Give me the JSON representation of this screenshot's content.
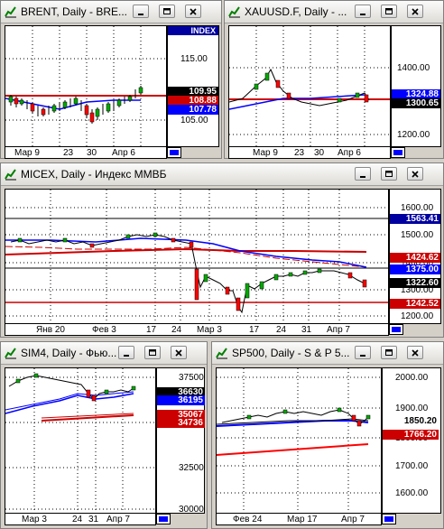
{
  "colors": {
    "up": "#00aa00",
    "down": "#ff0000",
    "ma_blue": "#0000ff",
    "ma_red": "#cc0000",
    "index_bg": "#0000a0"
  },
  "windows": {
    "brent": {
      "title": "BRENT, Daily - BRE...",
      "index_label": "INDEX",
      "prices": [
        "115.00",
        "105.00"
      ],
      "labels": [
        "109.95",
        "108.88",
        "107.78"
      ],
      "dates": [
        "Мар 9",
        "23",
        "30",
        "Апр 6"
      ]
    },
    "xauusd": {
      "title": "XAUUSD.F, Daily - ...",
      "prices": [
        "1400.00",
        "1200.00"
      ],
      "labels": [
        "1324.88",
        "1300.65"
      ],
      "dates": [
        "Мар 9",
        "23",
        "30",
        "Апр 6"
      ]
    },
    "micex": {
      "title": "MICEX, Daily - Индекс ММВБ",
      "prices": [
        "1600.00",
        "1500.00",
        "1400.00",
        "1300.00",
        "1200.00"
      ],
      "labels": [
        "1563.41",
        "1424.62",
        "1375.00",
        "1322.60",
        "1242.52"
      ],
      "dates": [
        "Янв 20",
        "Фев 3",
        "17",
        "24",
        "Мар 3",
        "17",
        "24",
        "31",
        "Апр 7"
      ]
    },
    "sim4": {
      "title": "SIM4, Daily - Фью...",
      "prices": [
        "37500",
        "35000",
        "32500",
        "30000"
      ],
      "labels": [
        "36630",
        "36195",
        "35067",
        "34736"
      ],
      "dates": [
        "Мар 3",
        "24",
        "31",
        "Апр 7"
      ]
    },
    "sp500": {
      "title": "SP500, Daily - S & P 5...",
      "prices": [
        "2000.00",
        "1900.00",
        "1800.00",
        "1700.00",
        "1600.00"
      ],
      "labels": [
        "1850.20",
        "1766.20"
      ],
      "dates": [
        "Фев 24",
        "Мар 17",
        "Апр 7"
      ]
    }
  }
}
